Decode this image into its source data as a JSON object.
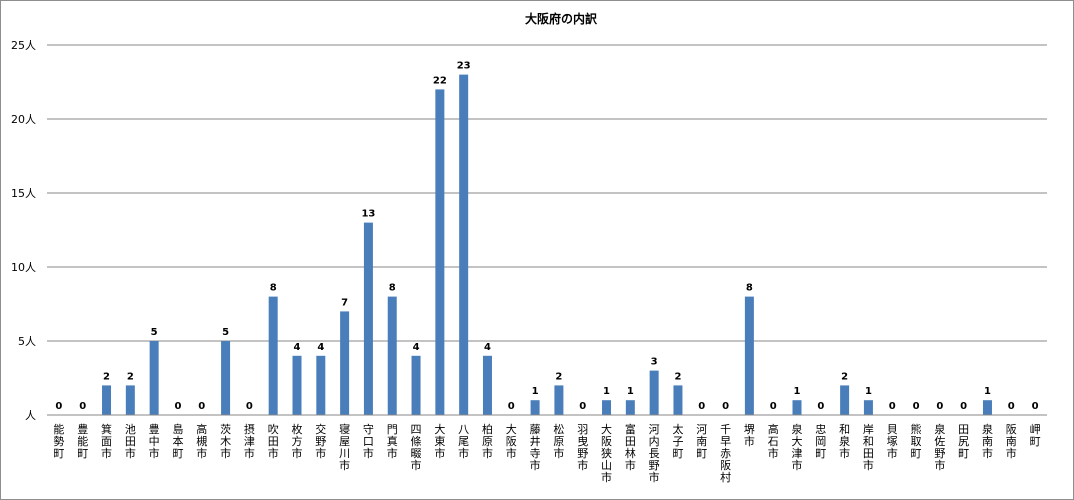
{
  "chart_data": {
    "type": "bar",
    "title": "大阪府の内訳",
    "y_unit": "人",
    "ylim": [
      0,
      25
    ],
    "yticks": [
      "人",
      "5人",
      "10人",
      "15人",
      "20人",
      "25人"
    ],
    "ytick_values": [
      0,
      5,
      10,
      15,
      20,
      25
    ],
    "grid": true,
    "legend": "none",
    "bar_color": "#4a7ebb",
    "categories": [
      "能勢町",
      "豊能町",
      "箕面市",
      "池田市",
      "豊中市",
      "島本町",
      "高槻市",
      "茨木市",
      "摂津市",
      "吹田市",
      "枚方市",
      "交野市",
      "寝屋川市",
      "守口市",
      "門真市",
      "四條畷市",
      "大東市",
      "八尾市",
      "柏原市",
      "大阪市",
      "藤井寺市",
      "松原市",
      "羽曳野市",
      "大阪狭山市",
      "富田林市",
      "河内長野市",
      "太子町",
      "河南町",
      "千早赤阪村",
      "堺市",
      "高石市",
      "泉大津市",
      "忠岡町",
      "和泉市",
      "岸和田市",
      "貝塚市",
      "熊取町",
      "泉佐野市",
      "田尻町",
      "泉南市",
      "阪南市",
      "岬町"
    ],
    "values": [
      0,
      0,
      2,
      2,
      5,
      0,
      0,
      5,
      0,
      8,
      4,
      4,
      7,
      13,
      8,
      4,
      22,
      23,
      4,
      0,
      1,
      2,
      0,
      1,
      1,
      3,
      2,
      0,
      0,
      8,
      0,
      1,
      0,
      2,
      1,
      0,
      0,
      0,
      0,
      1,
      0,
      0
    ]
  }
}
